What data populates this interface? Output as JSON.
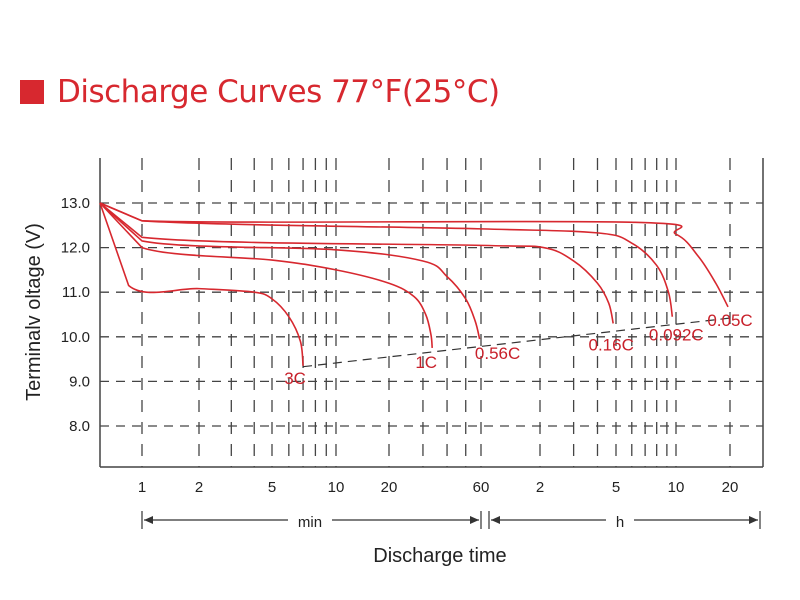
{
  "chart_data": {
    "type": "line",
    "title": "Discharge Curves 77°F(25°C)",
    "xlabel": "Discharge time",
    "ylabel": "Terminalv oltage (V)",
    "xscale": "log",
    "x_units": "minutes",
    "ylim": [
      7.0,
      14.0
    ],
    "yticks": [
      "13.0",
      "12.0",
      "11.0",
      "10.0",
      "9.0",
      "8.0"
    ],
    "ytick_values": [
      13,
      12,
      11,
      10,
      9,
      8
    ],
    "xticks_min": [
      {
        "label": "1",
        "t": 1
      },
      {
        "label": "2",
        "t": 2
      },
      {
        "label": "5",
        "t": 5
      },
      {
        "label": "10",
        "t": 10
      },
      {
        "label": "20",
        "t": 20
      },
      {
        "label": "60",
        "t": 60
      }
    ],
    "xticks_h": [
      {
        "label": "2",
        "t": 120
      },
      {
        "label": "5",
        "t": 300
      },
      {
        "label": "10",
        "t": 600
      },
      {
        "label": "20",
        "t": 1200
      }
    ],
    "unit_min": "min",
    "unit_h": "h",
    "grid": true,
    "color": "#d7282f",
    "series": [
      {
        "name": "3C",
        "points": [
          [
            0.6,
            13.0
          ],
          [
            0.85,
            11.15
          ],
          [
            2,
            11.08
          ],
          [
            4,
            11.0
          ],
          [
            5,
            10.85
          ],
          [
            6,
            10.45
          ],
          [
            6.8,
            9.9
          ],
          [
            7,
            9.35
          ]
        ]
      },
      {
        "name": "1C",
        "points": [
          [
            0.6,
            13.0
          ],
          [
            1,
            12.0
          ],
          [
            5,
            11.72
          ],
          [
            10,
            11.5
          ],
          [
            20,
            11.2
          ],
          [
            27,
            10.9
          ],
          [
            31,
            10.5
          ],
          [
            33,
            10.05
          ],
          [
            33.5,
            9.75
          ]
        ]
      },
      {
        "name": "0.56C",
        "points": [
          [
            0.6,
            13.0
          ],
          [
            1,
            12.15
          ],
          [
            10,
            11.95
          ],
          [
            30,
            11.7
          ],
          [
            40,
            11.35
          ],
          [
            50,
            10.85
          ],
          [
            56,
            10.35
          ],
          [
            59,
            9.95
          ]
        ]
      },
      {
        "name": "0.16C",
        "points": [
          [
            0.6,
            13.0
          ],
          [
            1,
            12.23
          ],
          [
            60,
            12.05
          ],
          [
            125,
            12.0
          ],
          [
            180,
            11.7
          ],
          [
            240,
            11.2
          ],
          [
            275,
            10.75
          ],
          [
            290,
            10.3
          ]
        ]
      },
      {
        "name": "0.092C",
        "points": [
          [
            0.6,
            13.0
          ],
          [
            1,
            12.6
          ],
          [
            60,
            12.42
          ],
          [
            240,
            12.33
          ],
          [
            360,
            12.1
          ],
          [
            480,
            11.6
          ],
          [
            550,
            11.0
          ],
          [
            575,
            10.45
          ]
        ]
      },
      {
        "name": "0.05C",
        "points": [
          [
            0.6,
            13.0
          ],
          [
            1,
            12.6
          ],
          [
            350,
            12.57
          ],
          [
            600,
            12.3
          ],
          [
            800,
            11.8
          ],
          [
            1000,
            11.2
          ],
          [
            1170,
            10.67
          ]
        ]
      }
    ],
    "cutoff_line": [
      [
        7,
        9.33
      ],
      [
        1200,
        10.42
      ]
    ]
  }
}
